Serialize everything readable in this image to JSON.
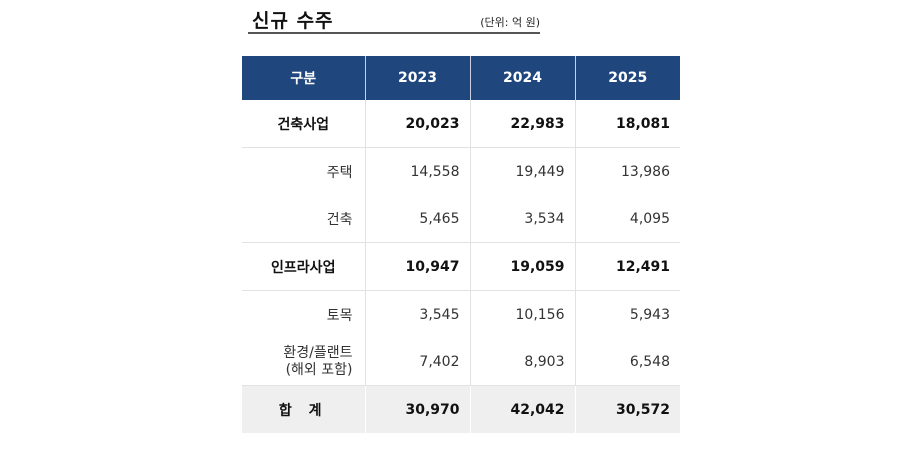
{
  "title": "신규 수주",
  "unit": "(단위: 억 원)",
  "table": {
    "headers": [
      "구분",
      "2023",
      "2024",
      "2025"
    ],
    "rows": [
      {
        "label": "건축사업",
        "values": [
          "20,023",
          "22,983",
          "18,081"
        ],
        "type": "major"
      },
      {
        "label": "주택",
        "values": [
          "14,558",
          "19,449",
          "13,986"
        ],
        "type": "sub"
      },
      {
        "label": "건축",
        "values": [
          "5,465",
          "3,534",
          "4,095"
        ],
        "type": "sub"
      },
      {
        "label": "인프라사업",
        "values": [
          "10,947",
          "19,059",
          "12,491"
        ],
        "type": "major"
      },
      {
        "label": "토목",
        "values": [
          "3,545",
          "10,156",
          "5,943"
        ],
        "type": "sub"
      },
      {
        "label": "환경/플랜트",
        "sublabel": "(해외 포함)",
        "values": [
          "7,402",
          "8,903",
          "6,548"
        ],
        "type": "sub"
      },
      {
        "label": "합 계",
        "values": [
          "30,970",
          "42,042",
          "30,572"
        ],
        "type": "total"
      }
    ]
  },
  "colors": {
    "header_bg": "#1f477d",
    "total_bg": "#efefef",
    "grid": "#e2e2e2"
  }
}
